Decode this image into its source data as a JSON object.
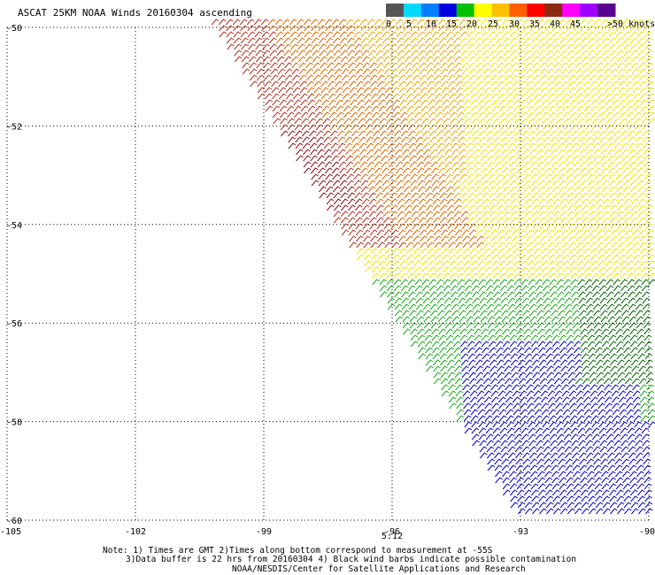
{
  "title": "ASCAT 25KM NOAA Winds 20160304 ascending",
  "legend": {
    "labels": [
      "0",
      "5",
      "10",
      "15",
      "20",
      "25",
      "30",
      "35",
      "40",
      "45",
      ">50 knots"
    ],
    "colors": [
      "#555555",
      "#00d8ff",
      "#0080ff",
      "#0000e0",
      "#00c000",
      "#ffff00",
      "#ffc000",
      "#ff6000",
      "#ff0000",
      "#8b2a10",
      "#ff00ff",
      "#a000ff",
      "#5a0090"
    ]
  },
  "axes": {
    "lon_ticks": [
      "-105",
      "-102",
      "-99",
      "-96",
      "-93",
      "-90"
    ],
    "lat_ticks": [
      "-50",
      "-52",
      "-54",
      "-56",
      "-58",
      "-60"
    ],
    "lon_range": [
      -105,
      -90
    ],
    "lat_range": [
      -60,
      -50
    ]
  },
  "time_label": "5:12",
  "notes": {
    "line1": "Note: 1) Times are GMT 2)Times along bottom correspond to measurement at -55S",
    "line2": "3)Data buffer is 22 hrs from 20160304 4) Black wind barbs indicate possible contamination",
    "line3": "NOAA/NESDIS/Center for Satellite Applications and Research"
  },
  "wind_colors": {
    "yellow": "#f2e400",
    "gold": "#e8a800",
    "orange": "#d86a00",
    "red": "#b03020",
    "dark_red": "#801018",
    "green": "#18a818",
    "dark_green": "#006400",
    "blue": "#0000c0"
  }
}
